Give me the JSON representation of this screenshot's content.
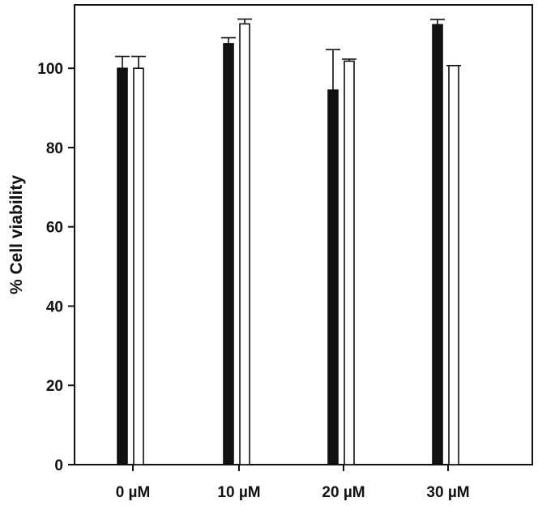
{
  "chart_data": {
    "type": "bar",
    "title": "",
    "xlabel": "",
    "ylabel": "% Cell viability",
    "ylim": [
      0,
      116
    ],
    "yticks": [
      0,
      20,
      40,
      60,
      80,
      100
    ],
    "ytick_labels": [
      "0",
      "20",
      "40",
      "60",
      "80",
      "100"
    ],
    "categories": [
      "0 µM",
      "10 µM",
      "20 µM",
      "30 µM"
    ],
    "grid": false,
    "legend": "none",
    "series": [
      {
        "values": [
          100,
          106.2,
          94.5,
          111.0
        ],
        "errors": [
          3.0,
          1.5,
          10.2,
          1.3
        ],
        "color": "#111111"
      },
      {
        "values": [
          100,
          111.2,
          101.8,
          100.7
        ],
        "errors": [
          3.0,
          1.2,
          0.5,
          0.0
        ],
        "color": "#ffffff"
      }
    ]
  }
}
